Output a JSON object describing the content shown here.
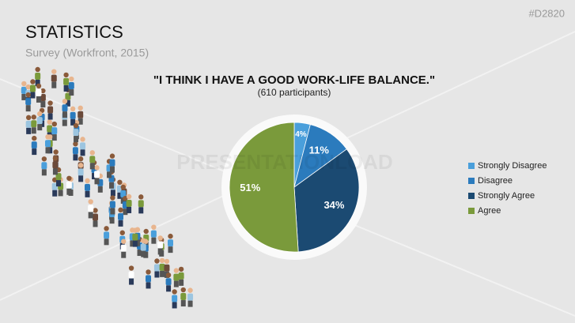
{
  "header": {
    "title": "STATISTICS",
    "subtitle": "Survey (Workfront, 2015)",
    "code": "#D2820"
  },
  "watermark": "PRESENTATIONLOAD",
  "chart_data": {
    "type": "pie",
    "title": "\"I THINK I HAVE A GOOD WORK-LIFE BALANCE.\"",
    "subtitle": "(610 participants)",
    "categories": [
      "Strongly Disagree",
      "Disagree",
      "Strongly Agree",
      "Agree"
    ],
    "values": [
      4,
      11,
      34,
      51
    ],
    "value_labels": [
      "4%",
      "11%",
      "34%",
      "51%"
    ],
    "colors": [
      "#4a9fdb",
      "#2b7bbd",
      "#1b4a72",
      "#7a9a3b"
    ],
    "legend": "right"
  }
}
